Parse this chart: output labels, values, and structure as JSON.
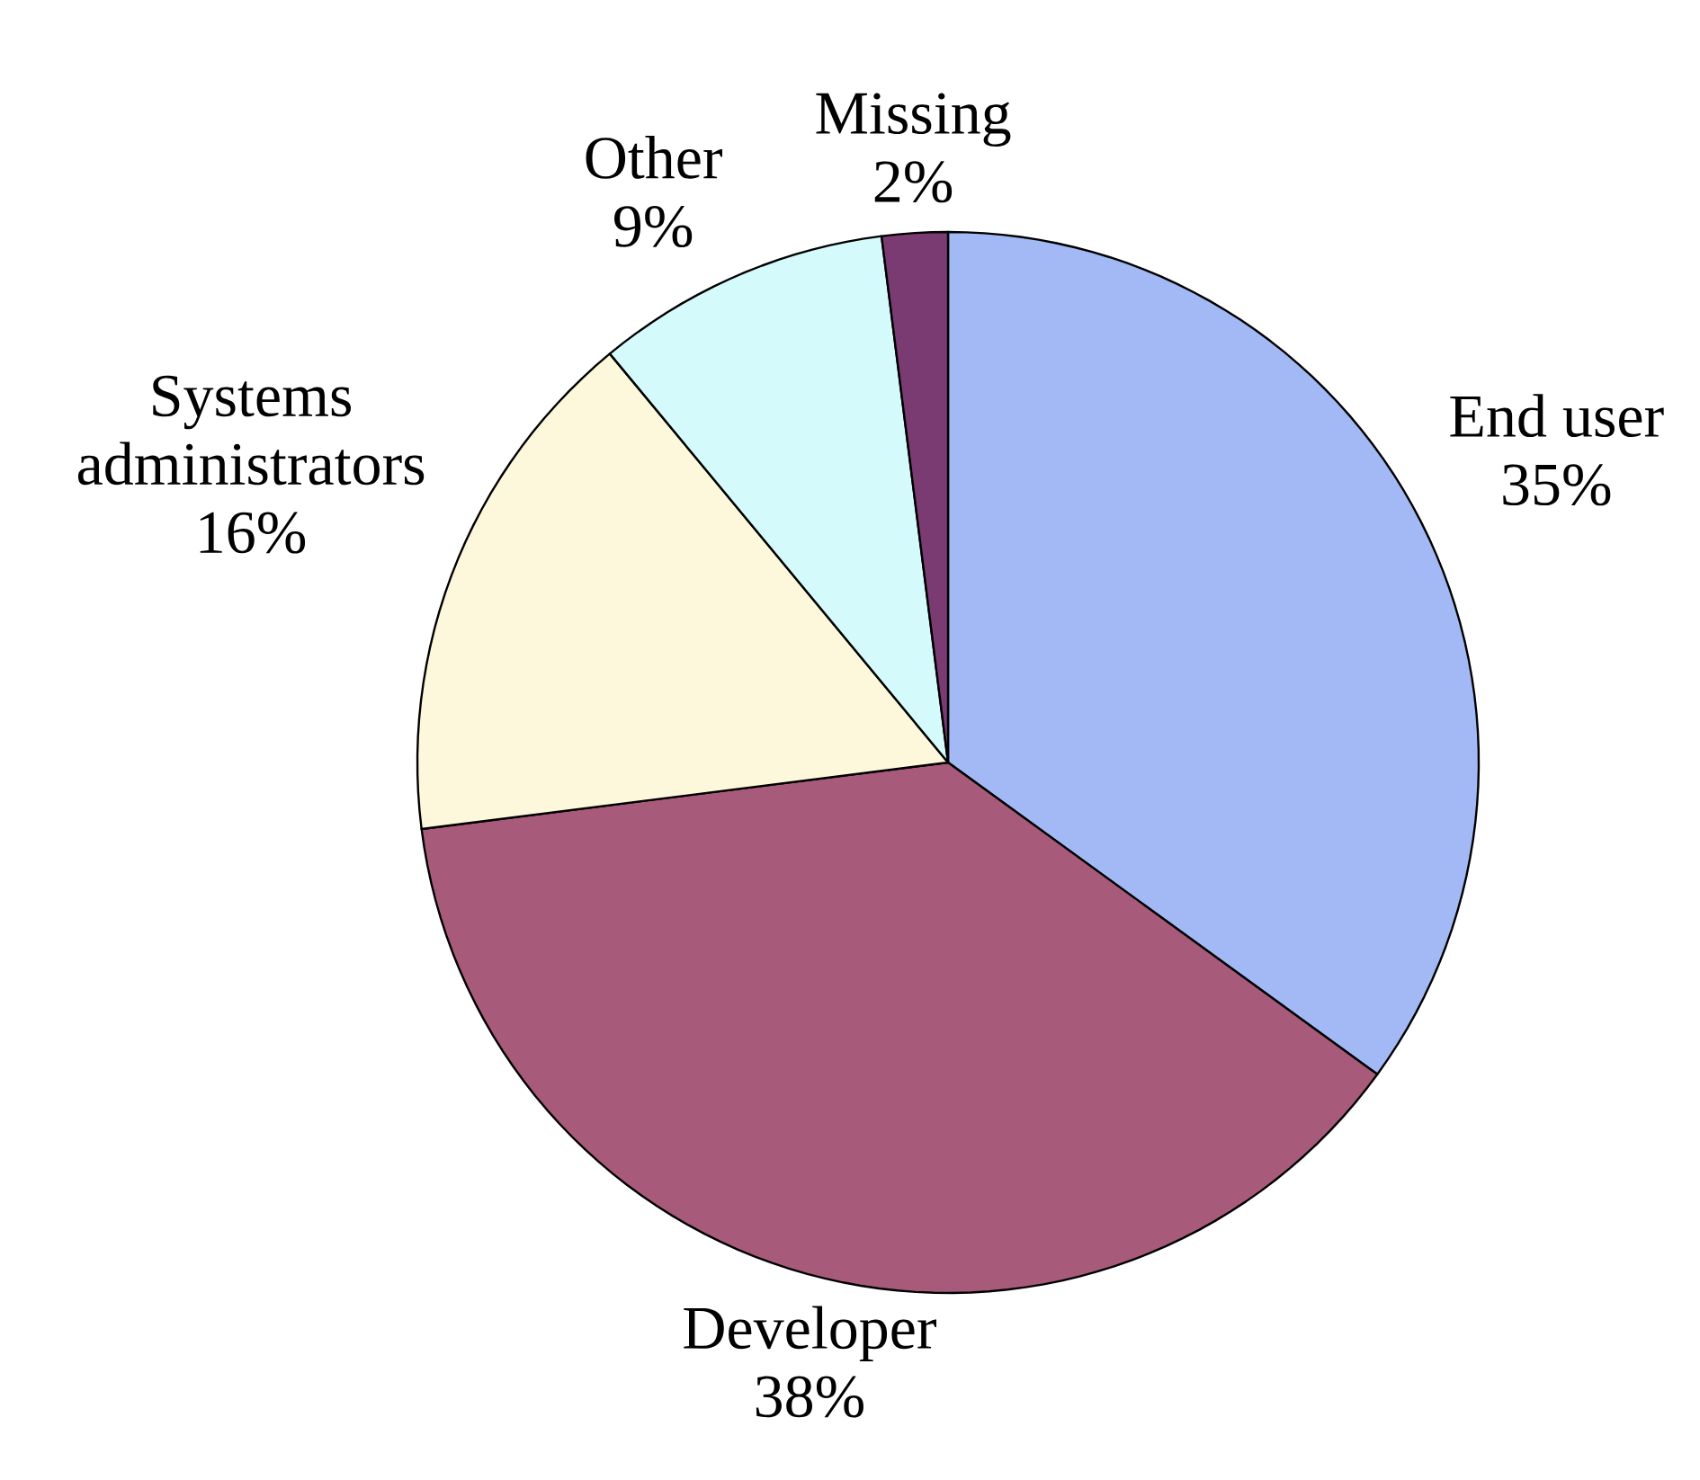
{
  "chart_data": {
    "type": "pie",
    "categories": [
      "End user",
      "Developer",
      "Systems administrators",
      "Other",
      "Missing"
    ],
    "values": [
      35,
      38,
      16,
      9,
      2
    ],
    "value_labels": [
      "35%",
      "38%",
      "16%",
      "9%",
      "2%"
    ],
    "colors": [
      "#a3b9f5",
      "#a85a7a",
      "#fdf7dc",
      "#d5fafc",
      "#7a3a72"
    ]
  }
}
